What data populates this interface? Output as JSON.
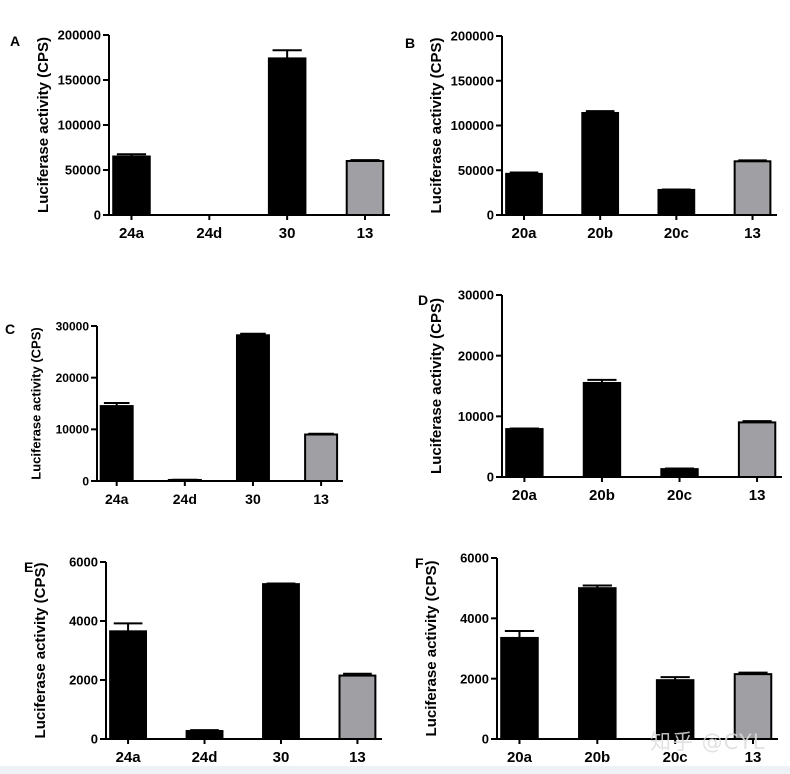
{
  "watermark": "知乎 @CYL",
  "colors": {
    "bar_dark": "#000000",
    "bar_reference": "#a0a0a4"
  },
  "chart_data": [
    {
      "panel": "A",
      "type": "bar",
      "ylabel": "Luciferase activity (CPS)",
      "ylim": [
        0,
        200000
      ],
      "yticks": [
        0,
        50000,
        100000,
        150000,
        200000
      ],
      "ytick_labels": [
        "0",
        "50000",
        "100000",
        "150000",
        "200000"
      ],
      "categories": [
        "24a",
        "24d",
        "30",
        "13"
      ],
      "values": [
        65000,
        0,
        174000,
        60000
      ],
      "errors": [
        2500,
        0,
        9000,
        1000
      ],
      "bar_colors": [
        "#000000",
        "#000000",
        "#000000",
        "#a0a0a4"
      ]
    },
    {
      "panel": "B",
      "type": "bar",
      "ylabel": "Luciferase activity (CPS)",
      "ylim": [
        0,
        200000
      ],
      "yticks": [
        0,
        50000,
        100000,
        150000,
        200000
      ],
      "ytick_labels": [
        "0",
        "50000",
        "100000",
        "150000",
        "200000"
      ],
      "categories": [
        "20a",
        "20b",
        "20c",
        "13"
      ],
      "values": [
        46000,
        114000,
        28000,
        60000
      ],
      "errors": [
        1500,
        2000,
        500,
        1000
      ],
      "bar_colors": [
        "#000000",
        "#000000",
        "#000000",
        "#a0a0a4"
      ]
    },
    {
      "panel": "C",
      "type": "bar",
      "ylabel": "Luciferase activity (CPS)",
      "ylim": [
        0,
        30000
      ],
      "yticks": [
        0,
        10000,
        20000,
        30000
      ],
      "ytick_labels": [
        "0",
        "10000",
        "20000",
        "30000"
      ],
      "categories": [
        "24a",
        "24d",
        "30",
        "13"
      ],
      "values": [
        14500,
        200,
        28200,
        9000
      ],
      "errors": [
        600,
        50,
        300,
        150
      ],
      "bar_colors": [
        "#000000",
        "#000000",
        "#000000",
        "#a0a0a4"
      ]
    },
    {
      "panel": "D",
      "type": "bar",
      "ylabel": "Luciferase activity (CPS)",
      "ylim": [
        0,
        30000
      ],
      "yticks": [
        0,
        10000,
        20000,
        30000
      ],
      "ytick_labels": [
        "0",
        "10000",
        "20000",
        "30000"
      ],
      "categories": [
        "20a",
        "20b",
        "20c",
        "13"
      ],
      "values": [
        7900,
        15500,
        1300,
        9000
      ],
      "errors": [
        100,
        500,
        100,
        200
      ],
      "bar_colors": [
        "#000000",
        "#000000",
        "#000000",
        "#a0a0a4"
      ]
    },
    {
      "panel": "E",
      "type": "bar",
      "ylabel": "Luciferase activity (CPS)",
      "ylim": [
        0,
        6000
      ],
      "yticks": [
        0,
        2000,
        4000,
        6000
      ],
      "ytick_labels": [
        "0",
        "2000",
        "4000",
        "6000"
      ],
      "categories": [
        "24a",
        "24d",
        "30",
        "13"
      ],
      "values": [
        3650,
        270,
        5250,
        2150
      ],
      "errors": [
        270,
        30,
        20,
        60
      ],
      "bar_colors": [
        "#000000",
        "#000000",
        "#000000",
        "#a0a0a4"
      ]
    },
    {
      "panel": "F",
      "type": "bar",
      "ylabel": "Luciferase activity (CPS)",
      "ylim": [
        0,
        6000
      ],
      "yticks": [
        0,
        2000,
        4000,
        6000
      ],
      "ytick_labels": [
        "0",
        "2000",
        "4000",
        "6000"
      ],
      "categories": [
        "20a",
        "20b",
        "20c",
        "13"
      ],
      "values": [
        3350,
        5000,
        1950,
        2150
      ],
      "errors": [
        230,
        90,
        100,
        50
      ],
      "bar_colors": [
        "#000000",
        "#000000",
        "#000000",
        "#a0a0a4"
      ]
    }
  ]
}
